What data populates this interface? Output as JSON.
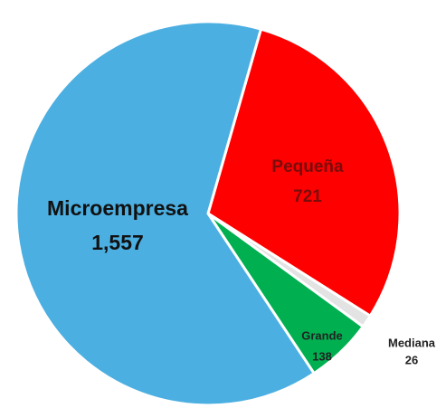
{
  "chart_data": {
    "type": "pie",
    "categories": [
      "Pequeña",
      "Mediana",
      "Grande",
      "Microempresa"
    ],
    "values": [
      721,
      26,
      138,
      1557
    ],
    "value_labels": [
      "721",
      "26",
      "138",
      "1,557"
    ],
    "colors": [
      "#ff0000",
      "#e3e3e3",
      "#00b050",
      "#4bafe1"
    ],
    "start_angle": 16
  }
}
